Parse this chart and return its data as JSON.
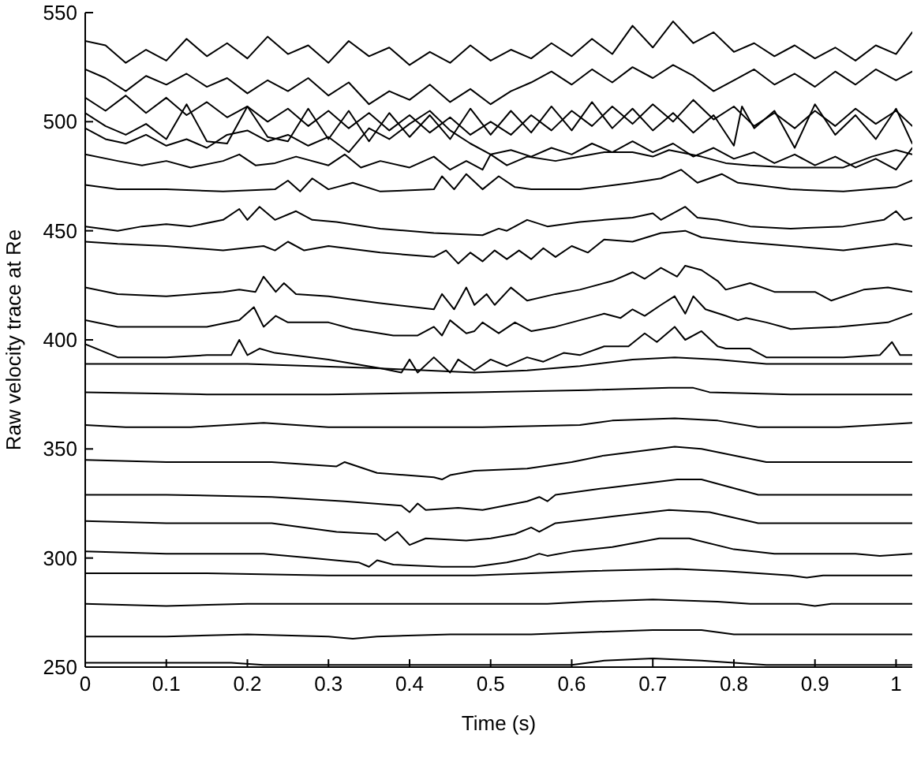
{
  "chart_data": {
    "type": "line",
    "xlabel": "Time (s)",
    "ylabel": "Raw velocity trace at Re",
    "xlim": [
      0,
      1.02
    ],
    "xticks": [
      0,
      0.1,
      0.2,
      0.3,
      0.4,
      0.5,
      0.6,
      0.7,
      0.8,
      0.9,
      1
    ],
    "ylim": [
      250,
      550
    ],
    "yticks": [
      250,
      300,
      350,
      400,
      450,
      500,
      550
    ],
    "marker": "none",
    "line_style": "solid",
    "series": [
      {
        "color": "#000000",
        "x": [
          0,
          0.025,
          0.05,
          0.075,
          0.1,
          0.125,
          0.15,
          0.175,
          0.2,
          0.225,
          0.25,
          0.275,
          0.3,
          0.325,
          0.35,
          0.375,
          0.4,
          0.425,
          0.45,
          0.475,
          0.5,
          0.525,
          0.55,
          0.575,
          0.6,
          0.625,
          0.65,
          0.675,
          0.7,
          0.725,
          0.75,
          0.775,
          0.8,
          0.825,
          0.85,
          0.875,
          0.9,
          0.925,
          0.95,
          0.975,
          1.0,
          1.02
        ],
        "values": [
          537,
          535,
          527,
          533,
          528,
          538,
          530,
          536,
          529,
          539,
          531,
          535,
          527,
          537,
          530,
          534,
          526,
          532,
          527,
          535,
          528,
          533,
          529,
          536,
          530,
          538,
          531,
          544,
          534,
          546,
          536,
          541,
          532,
          536,
          530,
          535,
          529,
          534,
          528,
          535,
          531,
          541
        ]
      },
      {
        "color": "#000000",
        "x": [
          0,
          0.025,
          0.05,
          0.075,
          0.1,
          0.125,
          0.15,
          0.175,
          0.2,
          0.225,
          0.25,
          0.275,
          0.3,
          0.325,
          0.35,
          0.375,
          0.4,
          0.425,
          0.45,
          0.475,
          0.5,
          0.525,
          0.55,
          0.575,
          0.6,
          0.625,
          0.65,
          0.675,
          0.7,
          0.725,
          0.75,
          0.775,
          0.8,
          0.825,
          0.85,
          0.875,
          0.9,
          0.925,
          0.95,
          0.975,
          1.0,
          1.02
        ],
        "values": [
          524,
          520,
          514,
          521,
          517,
          522,
          516,
          520,
          513,
          519,
          514,
          520,
          512,
          518,
          508,
          514,
          510,
          517,
          509,
          515,
          508,
          514,
          518,
          523,
          517,
          524,
          518,
          525,
          520,
          526,
          521,
          514,
          519,
          524,
          517,
          522,
          516,
          523,
          517,
          524,
          519,
          523
        ]
      },
      {
        "color": "#000000",
        "x": [
          0,
          0.025,
          0.05,
          0.075,
          0.1,
          0.125,
          0.15,
          0.175,
          0.2,
          0.225,
          0.25,
          0.275,
          0.3,
          0.325,
          0.35,
          0.375,
          0.4,
          0.425,
          0.45,
          0.475,
          0.5,
          0.525,
          0.55,
          0.575,
          0.6,
          0.625,
          0.65,
          0.675,
          0.7,
          0.725,
          0.75,
          0.775,
          0.8,
          0.825,
          0.85,
          0.875,
          0.9,
          0.925,
          0.95,
          0.975,
          1.0,
          1.02
        ],
        "values": [
          511,
          505,
          512,
          504,
          511,
          503,
          509,
          502,
          507,
          500,
          506,
          498,
          505,
          497,
          504,
          496,
          503,
          495,
          502,
          494,
          500,
          494,
          503,
          496,
          505,
          498,
          507,
          499,
          508,
          500,
          510,
          501,
          507,
          498,
          504,
          497,
          505,
          498,
          506,
          499,
          505,
          498
        ]
      },
      {
        "color": "#000000",
        "x": [
          0,
          0.025,
          0.05,
          0.075,
          0.1,
          0.125,
          0.15,
          0.175,
          0.2,
          0.225,
          0.25,
          0.275,
          0.3,
          0.325,
          0.35,
          0.375,
          0.4,
          0.425,
          0.45,
          0.475,
          0.5,
          0.525,
          0.55,
          0.575,
          0.6,
          0.625,
          0.65,
          0.675,
          0.7,
          0.725,
          0.75,
          0.775,
          0.8,
          0.81,
          0.825,
          0.85,
          0.875,
          0.9,
          0.925,
          0.95,
          0.975,
          1.0,
          1.02
        ],
        "values": [
          504,
          498,
          494,
          499,
          492,
          508,
          491,
          490,
          507,
          493,
          491,
          506,
          492,
          505,
          491,
          504,
          493,
          503,
          492,
          506,
          494,
          505,
          495,
          507,
          496,
          509,
          497,
          506,
          496,
          504,
          495,
          503,
          489,
          507,
          497,
          505,
          488,
          508,
          494,
          503,
          492,
          506,
          490
        ]
      },
      {
        "color": "#000000",
        "x": [
          0,
          0.025,
          0.05,
          0.075,
          0.1,
          0.125,
          0.15,
          0.175,
          0.2,
          0.225,
          0.25,
          0.275,
          0.3,
          0.325,
          0.35,
          0.375,
          0.4,
          0.425,
          0.45,
          0.475,
          0.5,
          0.525,
          0.55,
          0.575,
          0.6,
          0.625,
          0.65,
          0.675,
          0.7,
          0.725,
          0.75,
          0.775,
          0.8,
          0.825,
          0.85,
          0.875,
          0.9,
          0.925,
          0.95,
          0.975,
          1.0,
          1.02
        ],
        "values": [
          497,
          492,
          490,
          494,
          489,
          492,
          488,
          494,
          496,
          491,
          494,
          489,
          493,
          486,
          497,
          492,
          499,
          505,
          496,
          490,
          485,
          487,
          484,
          488,
          485,
          490,
          486,
          491,
          486,
          490,
          484,
          488,
          483,
          486,
          481,
          485,
          480,
          484,
          479,
          483,
          478,
          488
        ]
      },
      {
        "color": "#000000",
        "x": [
          0,
          0.04,
          0.07,
          0.1,
          0.13,
          0.17,
          0.19,
          0.21,
          0.234,
          0.26,
          0.3,
          0.32,
          0.34,
          0.364,
          0.4,
          0.43,
          0.45,
          0.47,
          0.49,
          0.5,
          0.52,
          0.545,
          0.58,
          0.61,
          0.64,
          0.675,
          0.7,
          0.72,
          0.76,
          0.79,
          0.82,
          0.87,
          0.935,
          0.97,
          1.0,
          1.02
        ],
        "values": [
          485,
          482,
          480,
          482,
          479,
          482,
          485,
          480,
          481,
          484,
          480,
          485,
          479,
          482,
          479,
          484,
          478,
          482,
          478,
          485,
          480,
          484,
          482,
          484,
          486,
          486,
          484,
          487,
          484,
          481,
          480,
          479,
          479,
          484,
          487,
          485
        ]
      },
      {
        "color": "#000000",
        "x": [
          0,
          0.04,
          0.1,
          0.17,
          0.234,
          0.25,
          0.265,
          0.28,
          0.3,
          0.33,
          0.364,
          0.43,
          0.44,
          0.455,
          0.47,
          0.49,
          0.51,
          0.53,
          0.55,
          0.61,
          0.675,
          0.71,
          0.735,
          0.755,
          0.785,
          0.805,
          0.87,
          0.935,
          1.0,
          1.02
        ],
        "values": [
          471,
          469,
          469,
          468,
          469,
          473,
          468,
          474,
          469,
          472,
          468,
          469,
          475,
          469,
          476,
          469,
          475,
          470,
          469,
          469,
          472,
          474,
          478,
          472,
          476,
          472,
          469,
          468,
          470,
          473
        ]
      },
      {
        "color": "#000000",
        "x": [
          0,
          0.04,
          0.07,
          0.1,
          0.13,
          0.17,
          0.19,
          0.2,
          0.215,
          0.234,
          0.26,
          0.28,
          0.31,
          0.364,
          0.43,
          0.49,
          0.51,
          0.52,
          0.545,
          0.57,
          0.61,
          0.64,
          0.675,
          0.7,
          0.71,
          0.74,
          0.755,
          0.78,
          0.82,
          0.87,
          0.935,
          0.985,
          1.0,
          1.01,
          1.02
        ],
        "values": [
          452,
          450,
          452,
          453,
          452,
          455,
          460,
          455,
          461,
          455,
          459,
          455,
          454,
          451,
          449,
          448,
          451,
          450,
          455,
          452,
          454,
          455,
          456,
          458,
          455,
          461,
          456,
          455,
          452,
          451,
          452,
          455,
          459,
          455,
          456
        ]
      },
      {
        "color": "#000000",
        "x": [
          0,
          0.04,
          0.1,
          0.17,
          0.22,
          0.234,
          0.25,
          0.27,
          0.3,
          0.364,
          0.43,
          0.445,
          0.46,
          0.475,
          0.49,
          0.505,
          0.52,
          0.535,
          0.55,
          0.565,
          0.58,
          0.6,
          0.62,
          0.64,
          0.675,
          0.71,
          0.74,
          0.76,
          0.805,
          0.87,
          0.935,
          1.0,
          1.02
        ],
        "values": [
          445,
          444,
          443,
          441,
          443,
          441,
          445,
          441,
          443,
          440,
          438,
          441,
          435,
          440,
          436,
          441,
          437,
          441,
          437,
          442,
          438,
          443,
          440,
          446,
          445,
          449,
          450,
          447,
          445,
          443,
          441,
          444,
          443
        ]
      },
      {
        "color": "#000000",
        "x": [
          0,
          0.04,
          0.1,
          0.17,
          0.19,
          0.21,
          0.22,
          0.235,
          0.245,
          0.26,
          0.3,
          0.36,
          0.43,
          0.44,
          0.455,
          0.47,
          0.48,
          0.495,
          0.505,
          0.525,
          0.545,
          0.58,
          0.61,
          0.65,
          0.675,
          0.69,
          0.71,
          0.73,
          0.74,
          0.76,
          0.78,
          0.79,
          0.82,
          0.85,
          0.9,
          0.92,
          0.96,
          0.99,
          1.02
        ],
        "values": [
          424,
          421,
          420,
          422,
          423,
          422,
          429,
          422,
          426,
          421,
          420,
          417,
          414,
          421,
          414,
          424,
          416,
          421,
          416,
          424,
          418,
          421,
          423,
          427,
          431,
          428,
          433,
          429,
          434,
          432,
          427,
          423,
          426,
          422,
          422,
          418,
          423,
          424,
          422
        ]
      },
      {
        "color": "#000000",
        "x": [
          0,
          0.04,
          0.1,
          0.15,
          0.19,
          0.208,
          0.22,
          0.235,
          0.25,
          0.3,
          0.33,
          0.38,
          0.41,
          0.43,
          0.44,
          0.45,
          0.47,
          0.48,
          0.49,
          0.51,
          0.53,
          0.55,
          0.58,
          0.61,
          0.64,
          0.66,
          0.675,
          0.69,
          0.71,
          0.727,
          0.74,
          0.75,
          0.765,
          0.79,
          0.805,
          0.815,
          0.84,
          0.87,
          0.93,
          0.99,
          1.02
        ],
        "values": [
          409,
          406,
          406,
          406,
          409,
          415,
          406,
          411,
          408,
          408,
          405,
          402,
          402,
          406,
          402,
          409,
          403,
          404,
          408,
          403,
          408,
          404,
          406,
          409,
          412,
          410,
          414,
          411,
          416,
          420,
          412,
          420,
          414,
          411,
          409,
          410,
          408,
          405,
          406,
          408,
          412
        ]
      },
      {
        "color": "#000000",
        "x": [
          0,
          0.04,
          0.1,
          0.15,
          0.18,
          0.19,
          0.2,
          0.215,
          0.234,
          0.3,
          0.364,
          0.39,
          0.4,
          0.41,
          0.43,
          0.45,
          0.46,
          0.48,
          0.5,
          0.52,
          0.545,
          0.565,
          0.59,
          0.61,
          0.64,
          0.67,
          0.69,
          0.705,
          0.727,
          0.74,
          0.76,
          0.78,
          0.79,
          0.82,
          0.84,
          0.87,
          0.935,
          0.98,
          0.995,
          1.005,
          1.02
        ],
        "values": [
          398,
          392,
          392,
          393,
          393,
          400,
          393,
          396,
          394,
          391,
          387,
          385,
          391,
          385,
          392,
          385,
          391,
          386,
          391,
          388,
          392,
          390,
          394,
          393,
          397,
          397,
          403,
          399,
          406,
          400,
          404,
          397,
          396,
          396,
          392,
          392,
          392,
          393,
          399,
          393,
          393
        ]
      },
      {
        "color": "#000000",
        "x": [
          0,
          0.2,
          0.36,
          0.48,
          0.545,
          0.61,
          0.675,
          0.727,
          0.78,
          0.84,
          1.02
        ],
        "values": [
          389,
          389,
          387,
          385,
          386,
          388,
          391,
          392,
          391,
          389,
          389
        ]
      },
      {
        "color": "#000000",
        "x": [
          0,
          0.15,
          0.3,
          0.48,
          0.62,
          0.72,
          0.75,
          0.77,
          0.87,
          1.02
        ],
        "values": [
          376,
          375,
          375,
          376,
          377,
          378,
          378,
          376,
          375,
          375
        ]
      },
      {
        "color": "#000000",
        "x": [
          0,
          0.05,
          0.13,
          0.22,
          0.3,
          0.4,
          0.49,
          0.61,
          0.65,
          0.727,
          0.78,
          0.83,
          0.93,
          1.02
        ],
        "values": [
          361,
          360,
          360,
          362,
          360,
          360,
          360,
          361,
          363,
          364,
          363,
          360,
          360,
          362
        ]
      },
      {
        "color": "#000000",
        "x": [
          0,
          0.1,
          0.23,
          0.31,
          0.32,
          0.36,
          0.43,
          0.44,
          0.45,
          0.48,
          0.545,
          0.6,
          0.64,
          0.727,
          0.76,
          0.84,
          0.93,
          1.02
        ],
        "values": [
          345,
          344,
          344,
          342,
          344,
          339,
          337,
          336,
          338,
          340,
          341,
          344,
          347,
          351,
          350,
          344,
          344,
          344
        ]
      },
      {
        "color": "#000000",
        "x": [
          0,
          0.1,
          0.23,
          0.32,
          0.39,
          0.4,
          0.41,
          0.42,
          0.46,
          0.49,
          0.545,
          0.56,
          0.57,
          0.58,
          0.64,
          0.73,
          0.76,
          0.83,
          0.9,
          1.02
        ],
        "values": [
          329,
          329,
          328,
          326,
          324,
          321,
          325,
          322,
          323,
          322,
          326,
          328,
          326,
          329,
          332,
          336,
          336,
          329,
          329,
          329
        ]
      },
      {
        "color": "#000000",
        "x": [
          0,
          0.1,
          0.23,
          0.31,
          0.36,
          0.37,
          0.385,
          0.4,
          0.42,
          0.47,
          0.5,
          0.53,
          0.55,
          0.56,
          0.58,
          0.65,
          0.72,
          0.77,
          0.83,
          0.9,
          1.02
        ],
        "values": [
          317,
          316,
          316,
          312,
          311,
          308,
          312,
          306,
          309,
          308,
          309,
          311,
          314,
          312,
          316,
          319,
          322,
          321,
          316,
          316,
          316
        ]
      },
      {
        "color": "#000000",
        "x": [
          0,
          0.1,
          0.22,
          0.28,
          0.337,
          0.35,
          0.36,
          0.38,
          0.44,
          0.48,
          0.52,
          0.545,
          0.56,
          0.57,
          0.6,
          0.65,
          0.708,
          0.745,
          0.8,
          0.85,
          0.95,
          0.98,
          1.02
        ],
        "values": [
          303,
          302,
          302,
          300,
          298,
          296,
          299,
          297,
          296,
          296,
          298,
          300,
          302,
          301,
          303,
          305,
          309,
          309,
          304,
          302,
          302,
          301,
          302
        ]
      },
      {
        "color": "#000000",
        "x": [
          0,
          0.15,
          0.3,
          0.48,
          0.55,
          0.62,
          0.73,
          0.79,
          0.87,
          0.89,
          0.91,
          1.02
        ],
        "values": [
          293,
          293,
          292,
          292,
          293,
          294,
          295,
          294,
          292,
          291,
          292,
          292
        ]
      },
      {
        "color": "#000000",
        "x": [
          0,
          0.1,
          0.2,
          0.3,
          0.4,
          0.5,
          0.57,
          0.62,
          0.7,
          0.78,
          0.82,
          0.88,
          0.9,
          0.92,
          1.02
        ],
        "values": [
          279,
          278,
          279,
          279,
          279,
          279,
          279,
          280,
          281,
          280,
          279,
          279,
          278,
          279,
          279
        ]
      },
      {
        "color": "#000000",
        "x": [
          0,
          0.1,
          0.2,
          0.3,
          0.33,
          0.36,
          0.45,
          0.55,
          0.62,
          0.7,
          0.76,
          0.8,
          0.9,
          1.02
        ],
        "values": [
          264,
          264,
          265,
          264,
          263,
          264,
          265,
          265,
          266,
          267,
          267,
          265,
          265,
          265
        ]
      },
      {
        "color": "#000000",
        "x": [
          0,
          0.1,
          0.18,
          0.22,
          0.6,
          0.64,
          0.7,
          0.76,
          0.8,
          0.84,
          1.02
        ],
        "values": [
          252,
          252,
          252,
          251,
          251,
          253,
          254,
          253,
          252,
          251,
          251
        ]
      }
    ]
  }
}
